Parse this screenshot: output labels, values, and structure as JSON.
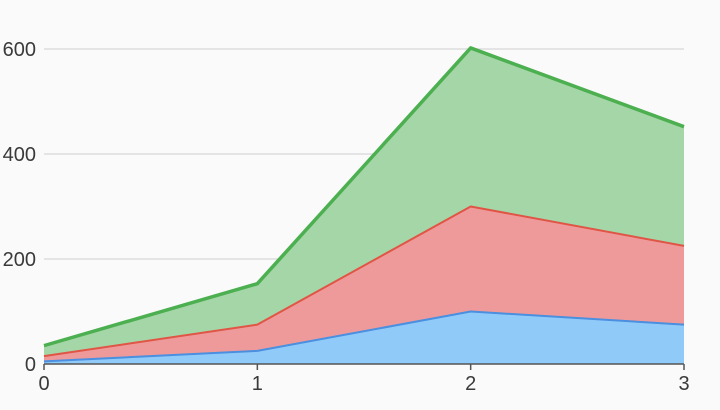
{
  "chart_data": {
    "type": "area",
    "stacked": true,
    "x": [
      0,
      1,
      2,
      3
    ],
    "x_ticks": [
      "0",
      "1",
      "2",
      "3"
    ],
    "y_ticks": [
      "0",
      "200",
      "400",
      "600"
    ],
    "y_tick_values": [
      0,
      200,
      400,
      600
    ],
    "xlim": [
      0,
      3
    ],
    "ylim": [
      0,
      600
    ],
    "grid": "horizontal",
    "title": "",
    "xlabel": "",
    "ylabel": "",
    "series": [
      {
        "values": [
          5,
          25,
          100,
          75
        ],
        "fill": "#90caf9",
        "stroke": "#4a8fe0"
      },
      {
        "values": [
          10,
          50,
          200,
          150
        ],
        "fill": "#ef9a9a",
        "stroke": "#e05545"
      },
      {
        "values": [
          20,
          78,
          302,
          227
        ],
        "fill": "#a5d6a7",
        "stroke": "#4caf50"
      }
    ]
  }
}
